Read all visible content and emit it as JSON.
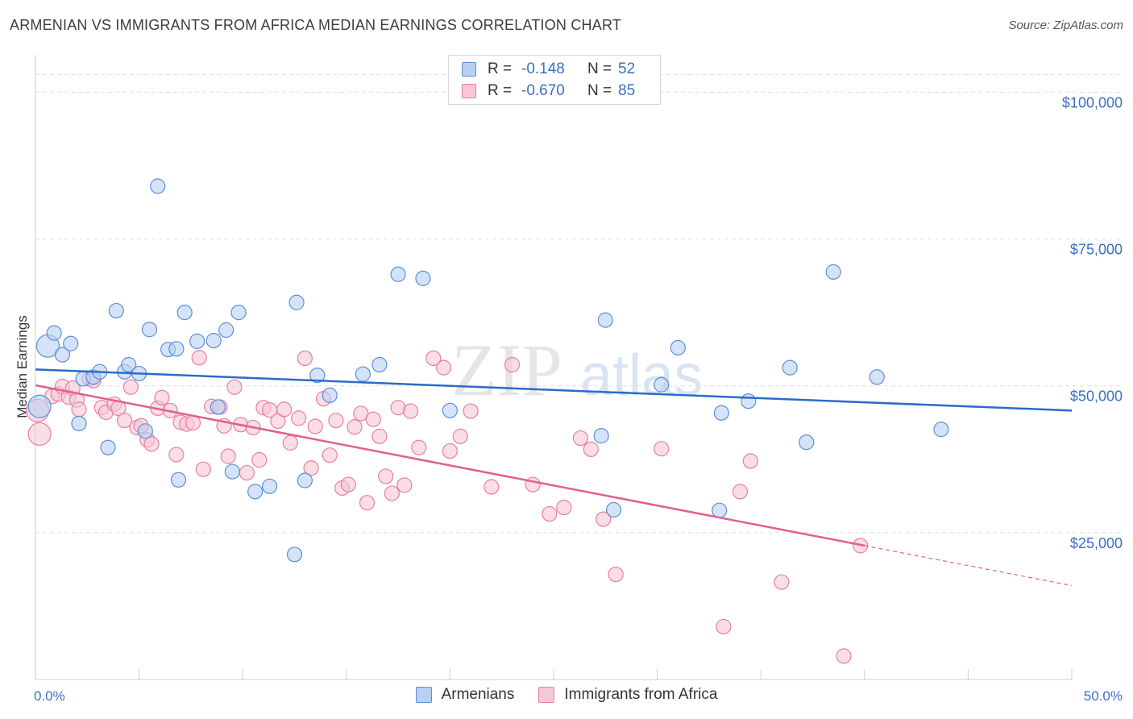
{
  "title": "ARMENIAN VS IMMIGRANTS FROM AFRICA MEDIAN EARNINGS CORRELATION CHART",
  "source": "Source: ZipAtlas.com",
  "watermark": {
    "zip": "ZIP",
    "atlas": "atlas"
  },
  "legend": {
    "armenians": {
      "r_label": "R =",
      "r_value": "-0.148",
      "n_label": "N =",
      "n_value": "52"
    },
    "africa": {
      "r_label": "R =",
      "r_value": "-0.670",
      "n_label": "N =",
      "n_value": "85"
    }
  },
  "colors": {
    "armenians_fill": "#b8d0f2",
    "armenians_stroke": "#5b8fd9",
    "armenians_line": "#2a6cc9",
    "africa_fill": "#f9c6d6",
    "africa_stroke": "#e77fa2",
    "africa_line": "#e0608e",
    "axis_text": "#3b6fc6",
    "grid": "#dedede"
  },
  "chart_data": {
    "type": "scatter",
    "title": "ARMENIAN VS IMMIGRANTS FROM AFRICA MEDIAN EARNINGS CORRELATION CHART",
    "xlabel": "",
    "ylabel": "Median Earnings",
    "xlim": [
      0,
      50
    ],
    "ylim": [
      0,
      105000
    ],
    "x_tick_labels": {
      "min": "0.0%",
      "max": "50.0%"
    },
    "y_ticks": [
      {
        "value": 25000,
        "label": "$25,000"
      },
      {
        "value": 50000,
        "label": "$50,000"
      },
      {
        "value": 75000,
        "label": "$75,000"
      },
      {
        "value": 100000,
        "label": "$100,000"
      }
    ],
    "series": [
      {
        "name": "Armenians",
        "trend": {
          "x0": 0,
          "y0": 52800,
          "x1": 50,
          "y1": 45800
        },
        "points": [
          [
            0.2,
            46500
          ],
          [
            0.6,
            56800
          ],
          [
            0.9,
            59000
          ],
          [
            1.3,
            55300
          ],
          [
            1.7,
            57200
          ],
          [
            2.1,
            43600
          ],
          [
            2.3,
            51200
          ],
          [
            2.8,
            51500
          ],
          [
            3.1,
            52400
          ],
          [
            3.5,
            39500
          ],
          [
            3.9,
            62800
          ],
          [
            4.3,
            52400
          ],
          [
            4.5,
            53600
          ],
          [
            5.0,
            52100
          ],
          [
            5.3,
            42300
          ],
          [
            5.5,
            59600
          ],
          [
            5.9,
            84000
          ],
          [
            6.4,
            56200
          ],
          [
            6.8,
            56300
          ],
          [
            6.9,
            34000
          ],
          [
            7.2,
            62500
          ],
          [
            7.8,
            57600
          ],
          [
            8.6,
            57700
          ],
          [
            8.8,
            46400
          ],
          [
            9.2,
            59500
          ],
          [
            9.5,
            35400
          ],
          [
            9.8,
            62500
          ],
          [
            10.6,
            32000
          ],
          [
            11.3,
            32900
          ],
          [
            12.5,
            21300
          ],
          [
            12.6,
            64200
          ],
          [
            13.0,
            33900
          ],
          [
            13.6,
            51800
          ],
          [
            14.2,
            48400
          ],
          [
            15.8,
            52000
          ],
          [
            16.6,
            53600
          ],
          [
            17.5,
            69000
          ],
          [
            18.7,
            68300
          ],
          [
            20.0,
            45800
          ],
          [
            27.3,
            41500
          ],
          [
            27.5,
            61200
          ],
          [
            27.9,
            28900
          ],
          [
            30.2,
            50200
          ],
          [
            31.0,
            56500
          ],
          [
            33.0,
            28800
          ],
          [
            33.1,
            45400
          ],
          [
            34.4,
            47400
          ],
          [
            36.4,
            53100
          ],
          [
            37.2,
            40400
          ],
          [
            38.5,
            69400
          ],
          [
            40.6,
            51500
          ],
          [
            43.7,
            42600
          ]
        ]
      },
      {
        "name": "Immigrants from Africa",
        "trend": {
          "x0": 0,
          "y0": 50100,
          "x1": 40.0,
          "y1": 22800,
          "dash_x1": 50,
          "dash_y1": 16000
        },
        "points": [
          [
            0.1,
            45800
          ],
          [
            0.2,
            41800
          ],
          [
            0.8,
            48200
          ],
          [
            1.1,
            48600
          ],
          [
            1.3,
            49900
          ],
          [
            1.6,
            48100
          ],
          [
            1.8,
            49600
          ],
          [
            2.0,
            47600
          ],
          [
            2.1,
            46000
          ],
          [
            2.6,
            51200
          ],
          [
            2.8,
            50900
          ],
          [
            3.2,
            46300
          ],
          [
            3.4,
            45500
          ],
          [
            3.8,
            46900
          ],
          [
            4.0,
            46200
          ],
          [
            4.3,
            44100
          ],
          [
            4.6,
            49800
          ],
          [
            4.9,
            42900
          ],
          [
            5.1,
            43200
          ],
          [
            5.4,
            40800
          ],
          [
            5.6,
            40100
          ],
          [
            5.9,
            46200
          ],
          [
            6.1,
            48000
          ],
          [
            6.5,
            45800
          ],
          [
            6.8,
            38300
          ],
          [
            7.0,
            43800
          ],
          [
            7.3,
            43500
          ],
          [
            7.6,
            43700
          ],
          [
            7.9,
            54800
          ],
          [
            8.1,
            35800
          ],
          [
            8.5,
            46500
          ],
          [
            8.9,
            46400
          ],
          [
            9.1,
            43200
          ],
          [
            9.3,
            38000
          ],
          [
            9.6,
            49800
          ],
          [
            9.9,
            43400
          ],
          [
            10.2,
            35200
          ],
          [
            10.5,
            42900
          ],
          [
            10.8,
            37400
          ],
          [
            11.0,
            46300
          ],
          [
            11.3,
            45900
          ],
          [
            11.7,
            44000
          ],
          [
            12.0,
            46000
          ],
          [
            12.3,
            40300
          ],
          [
            12.7,
            44500
          ],
          [
            13.0,
            54700
          ],
          [
            13.3,
            36000
          ],
          [
            13.5,
            43100
          ],
          [
            13.9,
            47800
          ],
          [
            14.2,
            38200
          ],
          [
            14.5,
            44100
          ],
          [
            14.8,
            32600
          ],
          [
            15.1,
            33200
          ],
          [
            15.4,
            43000
          ],
          [
            15.7,
            45300
          ],
          [
            16.0,
            30100
          ],
          [
            16.3,
            44300
          ],
          [
            16.6,
            41400
          ],
          [
            16.9,
            34600
          ],
          [
            17.2,
            31700
          ],
          [
            17.5,
            46300
          ],
          [
            17.8,
            33100
          ],
          [
            18.1,
            45700
          ],
          [
            18.5,
            39500
          ],
          [
            19.2,
            54700
          ],
          [
            19.7,
            53100
          ],
          [
            20.0,
            38900
          ],
          [
            20.5,
            41400
          ],
          [
            21.0,
            45700
          ],
          [
            22.0,
            32800
          ],
          [
            23.0,
            53600
          ],
          [
            24.0,
            33200
          ],
          [
            24.8,
            28200
          ],
          [
            25.5,
            29300
          ],
          [
            26.3,
            41100
          ],
          [
            26.8,
            39200
          ],
          [
            27.4,
            27300
          ],
          [
            28.0,
            17900
          ],
          [
            30.2,
            39300
          ],
          [
            33.2,
            9000
          ],
          [
            34.0,
            32000
          ],
          [
            34.5,
            37200
          ],
          [
            36.0,
            16600
          ],
          [
            39.0,
            4000
          ],
          [
            39.8,
            22800
          ]
        ]
      }
    ]
  },
  "bottom_legend": {
    "armenians": "Armenians",
    "africa": "Immigrants from Africa"
  }
}
